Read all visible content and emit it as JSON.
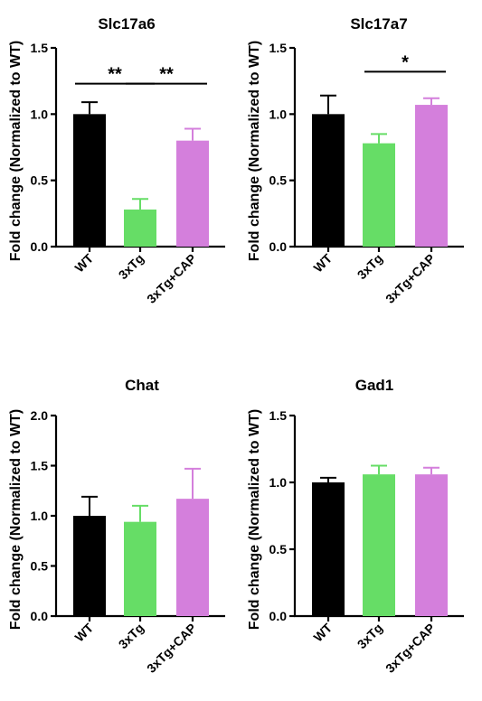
{
  "colors": {
    "WT": "#000000",
    "3xTg": "#66dd66",
    "3xTg+CAP": "#d47fdc"
  },
  "chart_data": [
    {
      "type": "bar",
      "title": "Slc17a6",
      "ylabel": "Fold change (Normalized to WT)",
      "categories": [
        "WT",
        "3xTg",
        "3xTg+CAP"
      ],
      "values": [
        1.0,
        0.28,
        0.8
      ],
      "errors": [
        0.09,
        0.08,
        0.09
      ],
      "ylim": [
        0,
        1.5
      ],
      "yticks": [
        "0.0",
        "0.5",
        "1.0",
        "1.5"
      ],
      "significance": [
        {
          "from": 0,
          "to": 1,
          "label": "**",
          "y": 1.23
        },
        {
          "from": 1,
          "to": 2,
          "label": "**",
          "y": 1.23
        }
      ]
    },
    {
      "type": "bar",
      "title": "Slc17a7",
      "ylabel": "Fold change (Normalized to WT)",
      "categories": [
        "WT",
        "3xTg",
        "3xTg+CAP"
      ],
      "values": [
        1.0,
        0.78,
        1.07
      ],
      "errors": [
        0.14,
        0.07,
        0.05
      ],
      "ylim": [
        0,
        1.5
      ],
      "yticks": [
        "0.0",
        "0.5",
        "1.0",
        "1.5"
      ],
      "significance": [
        {
          "from": 1,
          "to": 2,
          "label": "*",
          "y": 1.32
        }
      ]
    },
    {
      "type": "bar",
      "title": "Chat",
      "ylabel": "Fold change (Normalized to WT)",
      "categories": [
        "WT",
        "3xTg",
        "3xTg+CAP"
      ],
      "values": [
        1.0,
        0.94,
        1.17
      ],
      "errors": [
        0.19,
        0.16,
        0.3
      ],
      "ylim": [
        0,
        2.0
      ],
      "yticks": [
        "0.0",
        "0.5",
        "1.0",
        "1.5",
        "2.0"
      ],
      "significance": []
    },
    {
      "type": "bar",
      "title": "Gad1",
      "ylabel": "Fold change (Normalized to WT)",
      "categories": [
        "WT",
        "3xTg",
        "3xTg+CAP"
      ],
      "values": [
        1.0,
        1.06,
        1.06
      ],
      "errors": [
        0.035,
        0.065,
        0.05
      ],
      "ylim": [
        0,
        1.5
      ],
      "yticks": [
        "0.0",
        "0.5",
        "1.0",
        "1.5"
      ],
      "significance": []
    }
  ]
}
